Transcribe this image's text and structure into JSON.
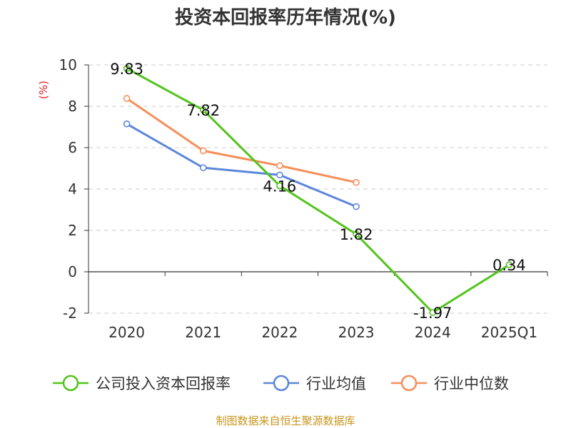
{
  "chart_data": {
    "type": "line",
    "title": "投资本回报率历年情况(%)",
    "ylabel": "(%)",
    "categories": [
      "2020",
      "2021",
      "2022",
      "2023",
      "2024",
      "2025Q1"
    ],
    "ylim": [
      -2,
      10
    ],
    "yticks": [
      "10",
      "8",
      "6",
      "4",
      "2",
      "0",
      "-2"
    ],
    "grid": true,
    "legend_position": "bottom",
    "series": [
      {
        "name": "公司投入资本回报率",
        "color": "#52c41a",
        "values": [
          9.83,
          7.82,
          4.16,
          1.82,
          -1.97,
          0.34
        ],
        "labels": [
          "9.83",
          "7.82",
          "4.16",
          "1.82",
          "-1.97",
          "0.34"
        ]
      },
      {
        "name": "行业均值",
        "color": "#5b86db",
        "values": [
          7.15,
          5.03,
          4.68,
          3.15,
          null,
          null
        ]
      },
      {
        "name": "行业中位数",
        "color": "#f78e5a",
        "values": [
          8.38,
          5.85,
          5.13,
          4.32,
          null,
          null
        ]
      }
    ],
    "source": "制图数据来自恒生聚源数据库"
  }
}
